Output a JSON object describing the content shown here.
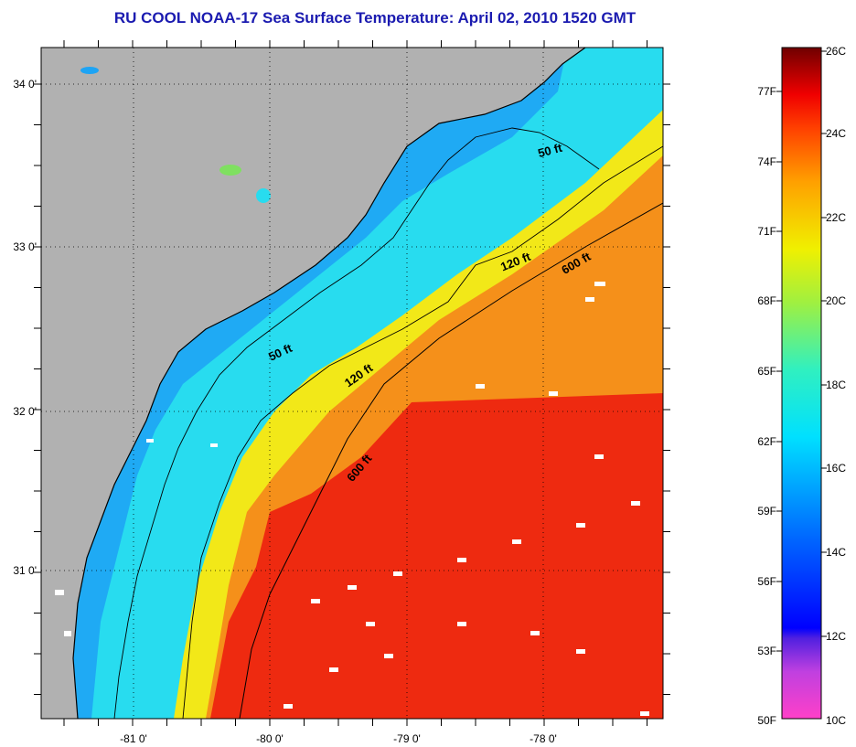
{
  "title": "RU COOL  NOAA-17  Sea Surface Temperature:  April 02, 2010 1520 GMT",
  "map": {
    "lat_labels": [
      "34 0'",
      "33 0'",
      "32 0'",
      "31 0'"
    ],
    "lon_labels": [
      "-81 0'",
      "-80 0'",
      "-79 0'",
      "-78 0'"
    ],
    "contour_labels": [
      {
        "text": "50 ft"
      },
      {
        "text": "120 ft"
      },
      {
        "text": "600 ft"
      },
      {
        "text": "50 ft"
      },
      {
        "text": "120 ft"
      },
      {
        "text": "600 ft"
      }
    ],
    "colors": {
      "land": "#b1b1b1",
      "cold": "#1fa0ff",
      "cool": "#22e0f2",
      "mid": "#f4ee10",
      "warm": "#f58a10",
      "hot": "#ee2010"
    }
  },
  "colorbar": {
    "fahrenheit_labels": [
      "77F",
      "74F",
      "71F",
      "68F",
      "65F",
      "62F",
      "59F",
      "56F",
      "53F",
      "50F"
    ],
    "celsius_labels": [
      "26C",
      "24C",
      "22C",
      "20C",
      "18C",
      "16C",
      "14C",
      "12C",
      "10C"
    ]
  }
}
